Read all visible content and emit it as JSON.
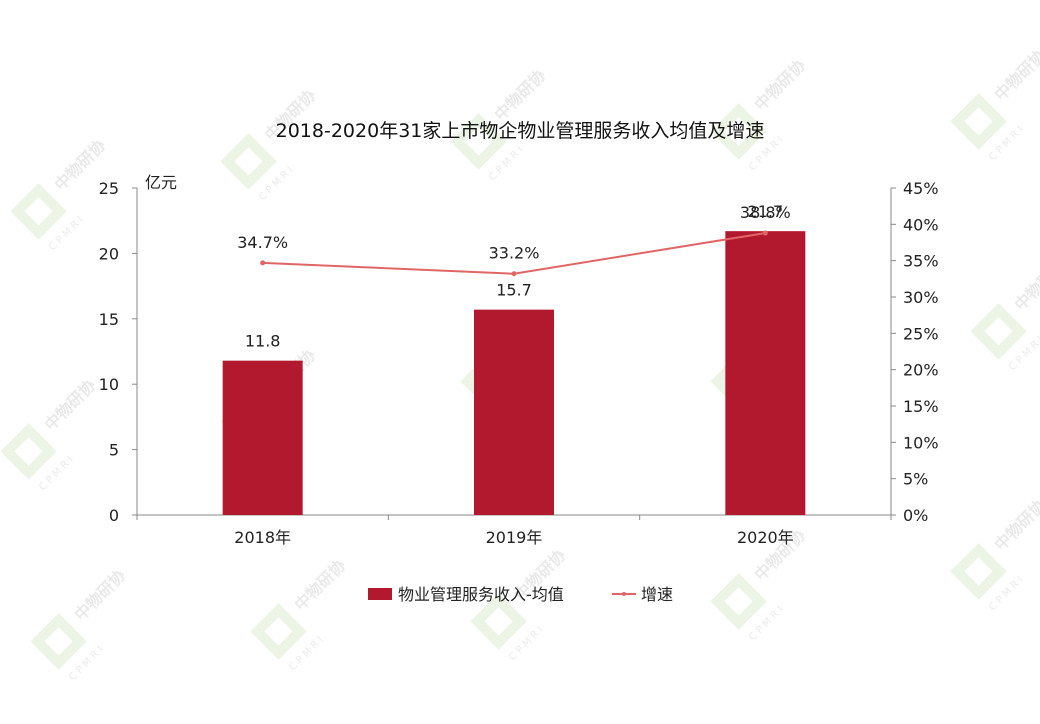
{
  "chart_data": {
    "type": "bar",
    "title": "2018-2020年31家上市物企物业管理服务收入均值及增速",
    "categories": [
      "2018年",
      "2019年",
      "2020年"
    ],
    "left_axis": {
      "unit_label": "亿元",
      "ylim": [
        0,
        25
      ],
      "ticks": [
        "0",
        "5",
        "10",
        "15",
        "20",
        "25"
      ]
    },
    "right_axis": {
      "ylim": [
        0,
        45
      ],
      "ticks": [
        "0%",
        "5%",
        "10%",
        "15%",
        "20%",
        "25%",
        "30%",
        "35%",
        "40%",
        "45%"
      ]
    },
    "series": [
      {
        "name": "物业管理服务收入-均值",
        "kind": "bar",
        "axis": "left",
        "color": "#B3192E",
        "values": [
          11.8,
          15.7,
          21.7
        ],
        "labels": [
          "11.8",
          "15.7",
          "21.7"
        ]
      },
      {
        "name": "增速",
        "kind": "line",
        "axis": "right",
        "color": "#E06666",
        "values": [
          34.7,
          33.2,
          38.8
        ],
        "labels": [
          "34.7%",
          "33.2%",
          "38.8%"
        ]
      }
    ],
    "legend_position": "bottom",
    "grid": false
  },
  "watermark": {
    "text": "中物研协",
    "subtext": "CPMRI"
  }
}
